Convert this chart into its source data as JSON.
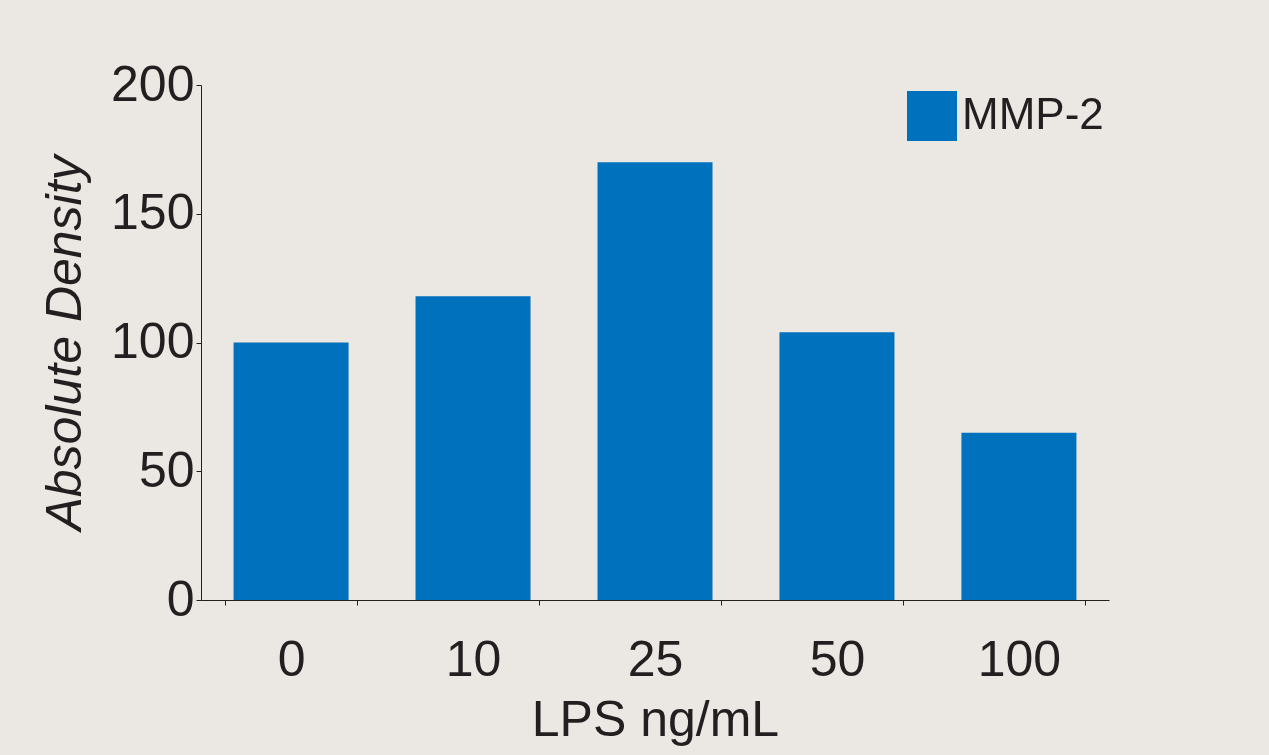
{
  "chart_data": {
    "type": "bar",
    "xlabel": "LPS ng/mL",
    "ylabel": "Absolute Density",
    "categories": [
      "0",
      "10",
      "25",
      "50",
      "100"
    ],
    "series": [
      {
        "name": "MMP-2",
        "color": "#0071bc",
        "values": [
          100,
          118,
          170,
          104,
          65
        ]
      }
    ],
    "ylim": [
      0,
      200
    ],
    "yticks": [
      0,
      50,
      100,
      150,
      200
    ],
    "grid": false,
    "legend": "top right"
  }
}
